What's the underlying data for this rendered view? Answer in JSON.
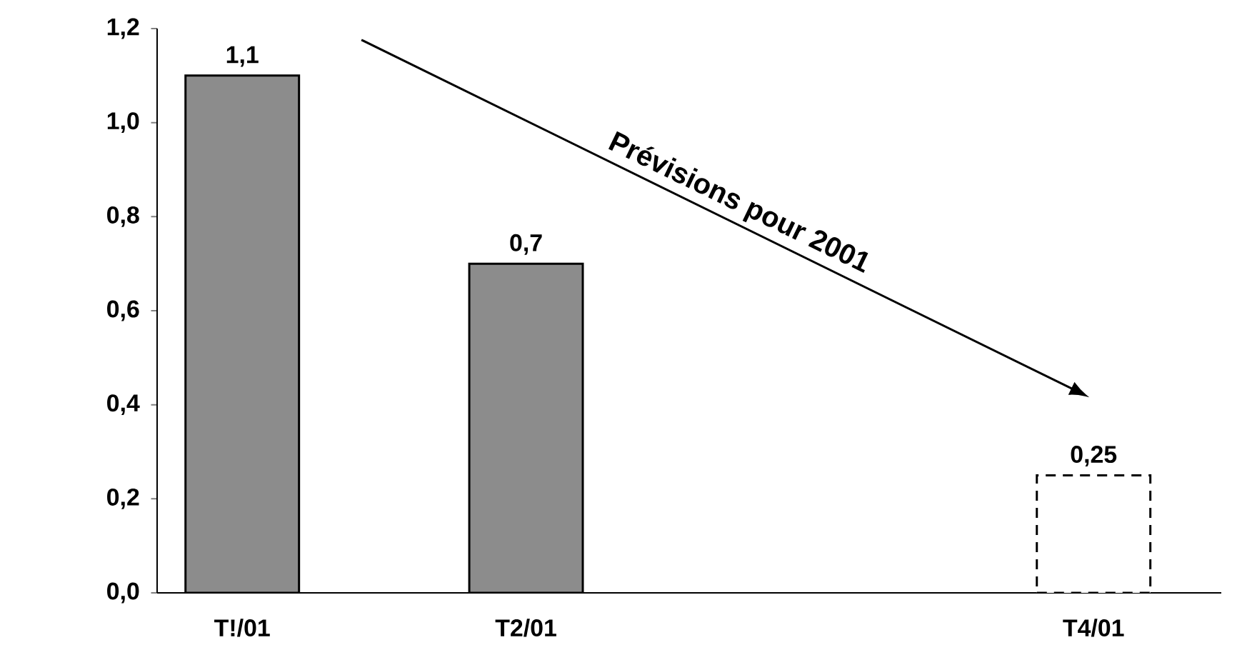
{
  "chart_data": {
    "type": "bar",
    "categories": [
      "T!/01",
      "T2/01",
      null,
      "T4/01"
    ],
    "series": [
      {
        "color": "#8c8c8c",
        "line_style": "solid",
        "values": [
          1.1,
          0.7,
          null,
          null
        ],
        "value_labels": [
          "1,1",
          "0,7",
          null,
          null
        ]
      },
      {
        "color": "#ffffff",
        "line_style": "dashed",
        "values": [
          null,
          null,
          null,
          0.25
        ],
        "value_labels": [
          null,
          null,
          null,
          "0,25"
        ]
      }
    ],
    "ylim": [
      0,
      1.2
    ],
    "yticks": [
      {
        "value": 0,
        "label": "0,0"
      },
      {
        "value": 0.2,
        "label": "0,2"
      },
      {
        "value": 0.4,
        "label": "0,4"
      },
      {
        "value": 0.6,
        "label": "0,6"
      },
      {
        "value": 0.8,
        "label": "0,8"
      },
      {
        "value": 1.0,
        "label": "1,0"
      },
      {
        "value": 1.2,
        "label": "1,2"
      }
    ],
    "annotations": [
      "Prévisions pour 2001"
    ],
    "grid": false
  }
}
